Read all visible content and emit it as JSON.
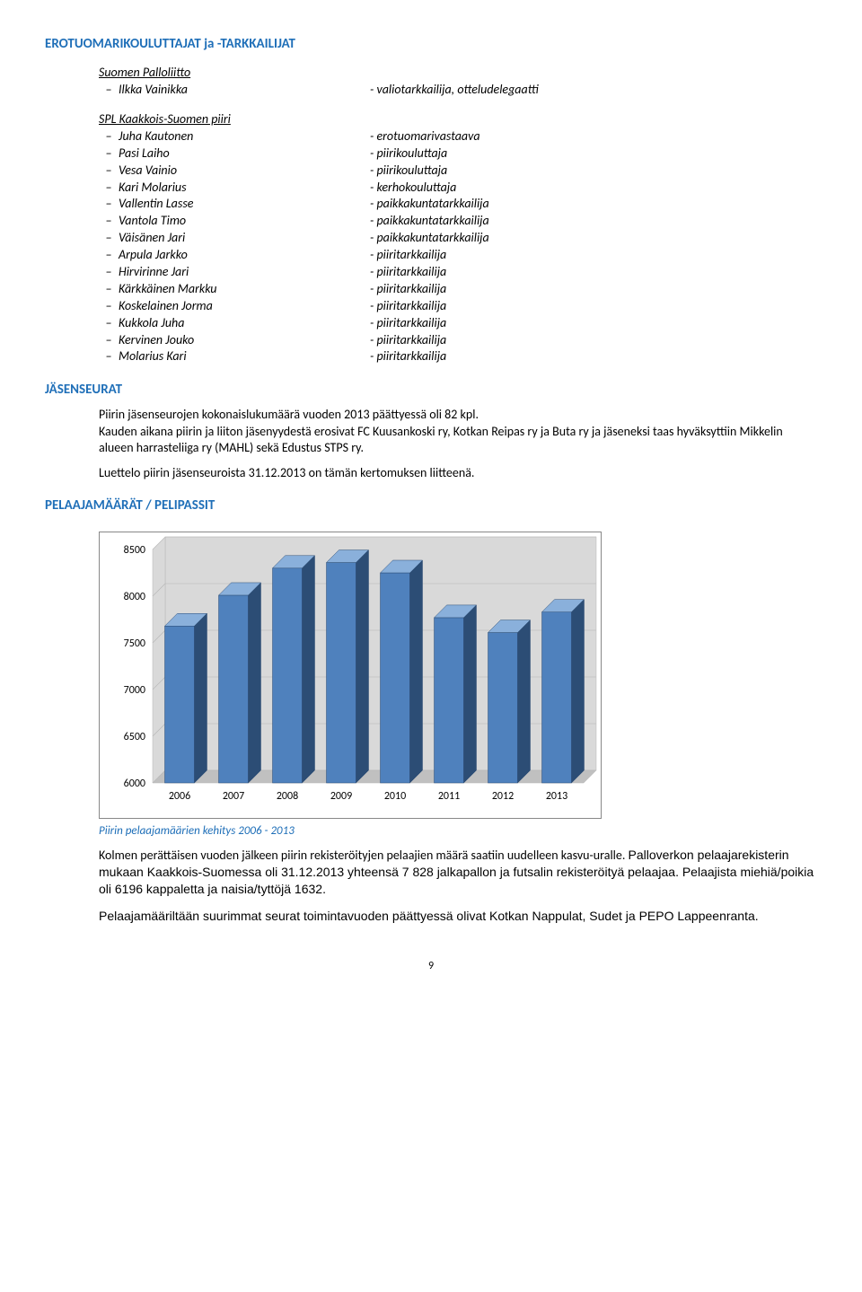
{
  "section1_title": "EROTUOMARIKOULUTTAJAT ja -TARKKAILIJAT",
  "group1_head": "Suomen Palloliitto",
  "group1": [
    {
      "name": "Ilkka Vainikka",
      "role": "- valiotarkkailija, otteludelegaatti"
    }
  ],
  "group2_head": "SPL Kaakkois-Suomen piiri",
  "group2": [
    {
      "name": "Juha Kautonen",
      "role": "- erotuomarivastaava"
    },
    {
      "name": "Pasi Laiho",
      "role": "- piirikouluttaja"
    },
    {
      "name": "Vesa Vainio",
      "role": "- piirikouluttaja"
    },
    {
      "name": "Kari Molarius",
      "role": "- kerhokouluttaja"
    },
    {
      "name": "Vallentin Lasse",
      "role": "- paikkakuntatarkkailija"
    },
    {
      "name": "Vantola Timo",
      "role": "- paikkakuntatarkkailija"
    },
    {
      "name": "Väisänen Jari",
      "role": "- paikkakuntatarkkailija"
    },
    {
      "name": "Arpula Jarkko",
      "role": "- piiritarkkailija"
    },
    {
      "name": "Hirvirinne Jari",
      "role": "- piiritarkkailija"
    },
    {
      "name": "Kärkkäinen Markku",
      "role": "- piiritarkkailija"
    },
    {
      "name": "Koskelainen Jorma",
      "role": "- piiritarkkailija"
    },
    {
      "name": "Kukkola Juha",
      "role": "- piiritarkkailija"
    },
    {
      "name": "Kervinen Jouko",
      "role": "- piiritarkkailija"
    },
    {
      "name": "Molarius Kari",
      "role": "- piiritarkkailija"
    }
  ],
  "section2_title": "JÄSENSEURAT",
  "p1": "Piirin jäsenseurojen kokonaislukumäärä vuoden 2013 päättyessä oli 82 kpl.",
  "p2": "Kauden aikana piirin ja liiton jäsenyydestä erosivat FC Kuusankoski ry, Kotkan Reipas ry ja Buta ry ja jäseneksi taas hyväksyttiin Mikkelin alueen harrasteliiga ry (MAHL) sekä Edustus STPS ry.",
  "p3": "Luettelo piirin jäsenseuroista 31.12.2013 on tämän kertomuksen liitteenä.",
  "section3_title": "PELAAJAMÄÄRÄT / PELIPASSIT",
  "chart": {
    "type": "bar",
    "categories": [
      "2006",
      "2007",
      "2008",
      "2009",
      "2010",
      "2011",
      "2012",
      "2013"
    ],
    "values": [
      7680,
      8010,
      8300,
      8360,
      8250,
      7770,
      7610,
      7830
    ],
    "bar_front_color": "#4f81bd",
    "bar_top_color": "#8ab0db",
    "bar_side_color": "#2c4d75",
    "background_color": "#ffffff",
    "floor_color": "#c0c0c0",
    "wall_color": "#d9d9d9",
    "grid_color": "#b7b7b7",
    "ylim": [
      6000,
      8500
    ],
    "ytick_step": 500,
    "axis_fontsize": 12,
    "ylabel_fontsize": 12,
    "bar_width": 0.55,
    "depth": 14
  },
  "chart_caption": "Piirin pelaajamäärien kehitys 2006 - 2013",
  "p4a": "Kolmen perättäisen vuoden jälkeen piirin rekisteröityjen pelaajien määrä saatiin uudelleen kasvu-uralle. ",
  "p4b": "Palloverkon pelaajarekisterin mukaan Kaakkois-Suomessa oli 31.12.2013 yhteensä 7 828 jalkapallon ja futsalin rekisteröityä pelaajaa. Pelaajista miehiä/poikia oli 6196 kappaletta ja naisia/tyttöjä 1632.",
  "p5": "Pelaajamääriltään suurimmat seurat toimintavuoden päättyessä olivat Kotkan Nappulat, Sudet ja PEPO Lappeenranta.",
  "page_number": "9"
}
